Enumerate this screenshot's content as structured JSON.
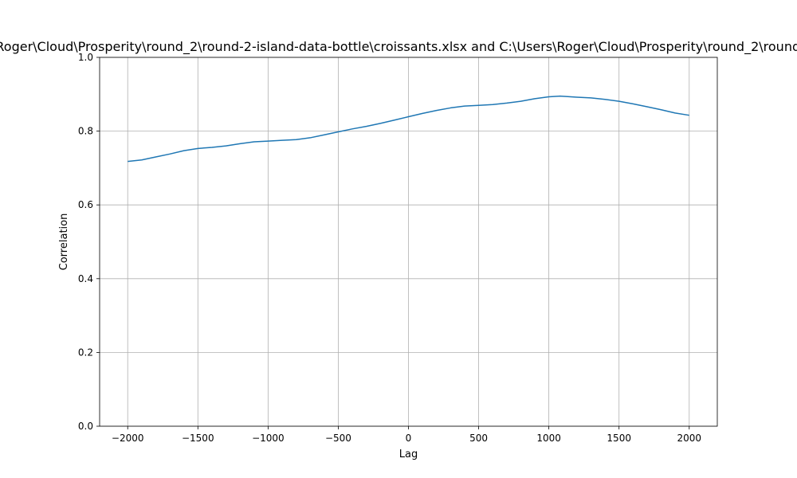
{
  "chart_data": {
    "type": "line",
    "title": "Cross-correlation between C:\\Users\\Roger\\Cloud\\Prosperity\\round_2\\round-2-island-data-bottle\\croissants.xlsx and C:\\Users\\Roger\\Cloud\\Prosperity\\round_2\\round-2-island-data-bottle\\picnic_basket.xlsx",
    "xlabel": "Lag",
    "ylabel": "Correlation",
    "xlim": [
      -2200,
      2200
    ],
    "ylim": [
      0,
      1.0
    ],
    "xticks": [
      -2000,
      -1500,
      -1000,
      -500,
      0,
      500,
      1000,
      1500,
      2000
    ],
    "xtick_labels": [
      "−2000",
      "−1500",
      "−1000",
      "−500",
      "0",
      "500",
      "1000",
      "1500",
      "2000"
    ],
    "yticks": [
      0,
      0.2,
      0.4,
      0.6,
      0.8,
      1.0
    ],
    "ytick_labels": [
      "0.0",
      "0.2",
      "0.4",
      "0.6",
      "0.8",
      "1.0"
    ],
    "grid": true,
    "color": "#1f77b4",
    "series": [
      {
        "x": [
          -2000,
          -1900,
          -1800,
          -1700,
          -1600,
          -1500,
          -1400,
          -1300,
          -1200,
          -1100,
          -1000,
          -900,
          -800,
          -700,
          -600,
          -500,
          -400,
          -300,
          -200,
          -100,
          0,
          100,
          200,
          300,
          400,
          500,
          600,
          700,
          800,
          900,
          1000,
          1080,
          1200,
          1300,
          1400,
          1500,
          1600,
          1700,
          1800,
          1900,
          2000
        ],
        "y": [
          0.718,
          0.722,
          0.73,
          0.738,
          0.747,
          0.753,
          0.756,
          0.76,
          0.766,
          0.771,
          0.773,
          0.775,
          0.777,
          0.782,
          0.79,
          0.798,
          0.806,
          0.813,
          0.821,
          0.83,
          0.839,
          0.848,
          0.856,
          0.863,
          0.868,
          0.87,
          0.872,
          0.876,
          0.881,
          0.888,
          0.893,
          0.895,
          0.892,
          0.89,
          0.886,
          0.881,
          0.874,
          0.866,
          0.858,
          0.849,
          0.843
        ]
      }
    ]
  }
}
